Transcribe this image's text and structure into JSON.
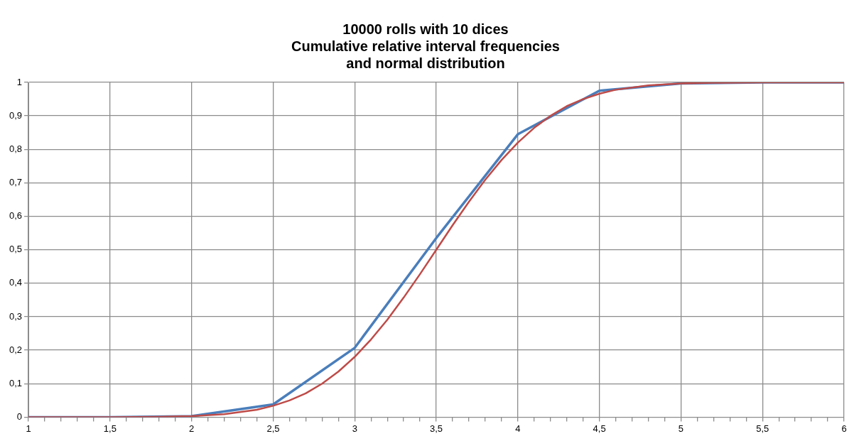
{
  "chart_data": {
    "type": "line",
    "title": "10000 rolls with 10 dices\nCumulative relative interval frequencies\nand normal distribution",
    "xlim": [
      1,
      6
    ],
    "xticks": [
      1,
      {
        "value": 1.1,
        "label": null
      },
      {
        "value": 1.2,
        "label": null
      },
      {
        "value": 1.3,
        "label": null
      },
      {
        "value": 1.4,
        "label": null
      },
      {
        "value": 1.5,
        "label": "1,5"
      },
      {
        "value": 1.6,
        "label": null
      },
      {
        "value": 1.7,
        "label": null
      },
      {
        "value": 1.8,
        "label": null
      },
      {
        "value": 1.9,
        "label": null
      },
      2,
      {
        "value": 2.1,
        "label": null
      },
      {
        "value": 2.2,
        "label": null
      },
      {
        "value": 2.3,
        "label": null
      },
      {
        "value": 2.4,
        "label": null
      },
      {
        "value": 2.5,
        "label": "2,5"
      },
      {
        "value": 2.6,
        "label": null
      },
      {
        "value": 2.7,
        "label": null
      },
      {
        "value": 2.8,
        "label": null
      },
      {
        "value": 2.9,
        "label": null
      },
      3,
      {
        "value": 3.1,
        "label": null
      },
      {
        "value": 3.2,
        "label": null
      },
      {
        "value": 3.3,
        "label": null
      },
      {
        "value": 3.4,
        "label": null
      },
      {
        "value": 3.5,
        "label": "3,5"
      },
      {
        "value": 3.6,
        "label": null
      },
      {
        "value": 3.7,
        "label": null
      },
      {
        "value": 3.8,
        "label": null
      },
      {
        "value": 3.9,
        "label": null
      },
      4,
      {
        "value": 4.1,
        "label": null
      },
      {
        "value": 4.2,
        "label": null
      },
      {
        "value": 4.3,
        "label": null
      },
      {
        "value": 4.4,
        "label": null
      },
      {
        "value": 4.5,
        "label": "4,5"
      },
      {
        "value": 4.6,
        "label": null
      },
      {
        "value": 4.7,
        "label": null
      },
      {
        "value": 4.8,
        "label": null
      },
      {
        "value": 4.9,
        "label": null
      },
      5,
      {
        "value": 5.1,
        "label": null
      },
      {
        "value": 5.2,
        "label": null
      },
      {
        "value": 5.3,
        "label": null
      },
      {
        "value": 5.4,
        "label": null
      },
      {
        "value": 5.5,
        "label": "5,5"
      },
      {
        "value": 5.6,
        "label": null
      },
      {
        "value": 5.7,
        "label": null
      },
      {
        "value": 5.8,
        "label": null
      },
      {
        "value": 5.9,
        "label": null
      },
      6
    ],
    "ylim": [
      0,
      1
    ],
    "yticks": [
      0,
      {
        "value": 0.1,
        "label": "0,1"
      },
      {
        "value": 0.2,
        "label": "0,2"
      },
      {
        "value": 0.3,
        "label": "0,3"
      },
      {
        "value": 0.4,
        "label": "0,4"
      },
      {
        "value": 0.5,
        "label": "0,5"
      },
      {
        "value": 0.6,
        "label": "0,6"
      },
      {
        "value": 0.7,
        "label": "0,7"
      },
      {
        "value": 0.8,
        "label": "0,8"
      },
      {
        "value": 0.9,
        "label": "0,9"
      },
      1
    ],
    "grid": true,
    "legend": false,
    "marker": "none",
    "line_style": "solid",
    "series": [
      {
        "color": "#4a7ebb",
        "x": [
          1,
          1.5,
          2,
          2.5,
          3,
          3.5,
          4,
          4.5,
          5,
          5.5,
          6
        ],
        "values": [
          0,
          0,
          0.003,
          0.038,
          0.207,
          0.535,
          0.845,
          0.975,
          0.997,
          1,
          1
        ]
      },
      {
        "color": "#be4b48",
        "x": [
          1,
          1.5,
          1.8,
          2,
          2.2,
          2.4,
          2.5,
          2.6,
          2.7,
          2.8,
          2.9,
          3,
          3.1,
          3.2,
          3.3,
          3.4,
          3.5,
          3.6,
          3.7,
          3.8,
          3.9,
          4,
          4.1,
          4.2,
          4.3,
          4.4,
          4.5,
          4.6,
          4.8,
          5,
          5.2,
          5.5,
          6
        ],
        "values": [
          0,
          0,
          0.001,
          0.003,
          0.009,
          0.022,
          0.034,
          0.05,
          0.071,
          0.1,
          0.136,
          0.18,
          0.232,
          0.291,
          0.357,
          0.427,
          0.5,
          0.573,
          0.643,
          0.709,
          0.768,
          0.82,
          0.864,
          0.9,
          0.929,
          0.95,
          0.966,
          0.978,
          0.991,
          0.997,
          0.999,
          1,
          1
        ]
      }
    ]
  }
}
